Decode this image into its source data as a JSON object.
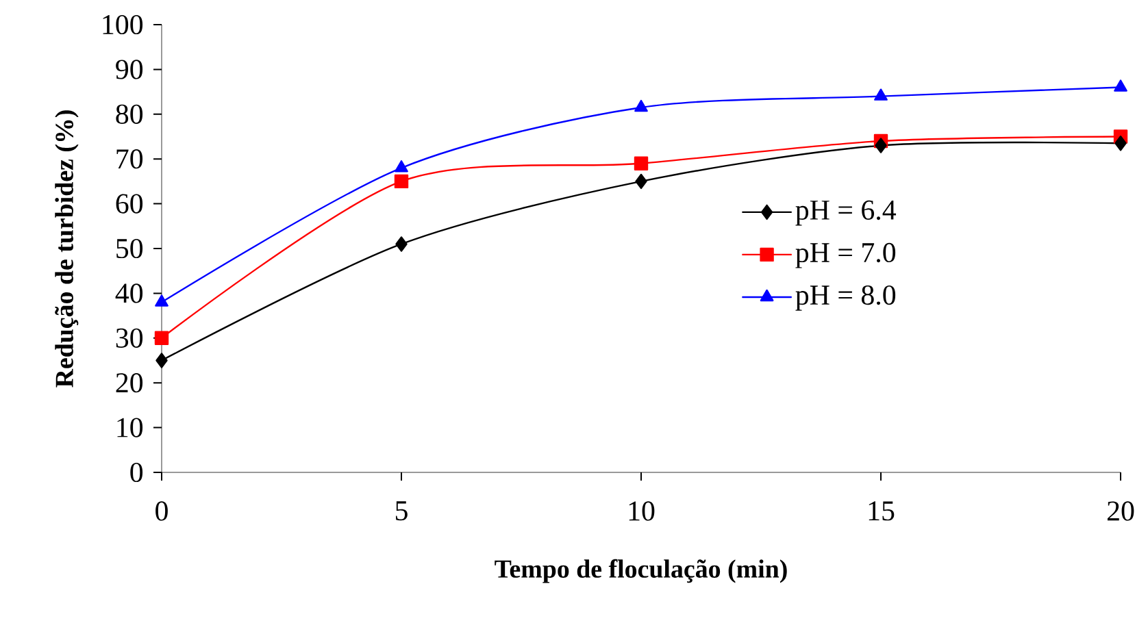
{
  "chart_data": {
    "type": "line",
    "xlabel": "Tempo de floculação (min)",
    "ylabel": "Redução de turbidez  (%)",
    "x": [
      0,
      5,
      10,
      15,
      20
    ],
    "series": [
      {
        "name": "pH = 6.4",
        "color": "#000000",
        "marker": "diamond",
        "values": [
          25,
          51,
          65,
          73,
          73.5
        ]
      },
      {
        "name": "pH = 7.0",
        "color": "#ff0000",
        "marker": "square",
        "values": [
          30,
          65,
          69,
          74,
          75
        ]
      },
      {
        "name": "pH = 8.0",
        "color": "#0000ff",
        "marker": "triangle",
        "values": [
          38,
          68,
          81.5,
          84,
          86
        ]
      }
    ],
    "xlim": [
      0,
      20
    ],
    "xticks": [
      0,
      5,
      10,
      15,
      20
    ],
    "ylim": [
      0,
      100
    ],
    "yticks": [
      0,
      10,
      20,
      30,
      40,
      50,
      60,
      70,
      80,
      90,
      100
    ],
    "legend": "right",
    "line_style": "solid",
    "grid": false
  }
}
